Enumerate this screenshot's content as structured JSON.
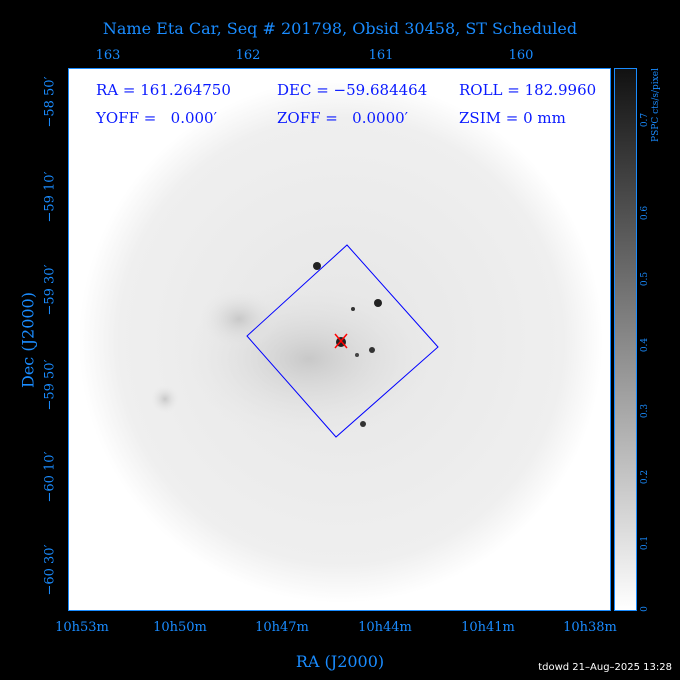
{
  "title": "Name Eta Car, Seq # 201798, Obsid 30458, ST Scheduled",
  "top_axis": [
    "163",
    "162",
    "161",
    "160"
  ],
  "bottom_axis": [
    "10h53m",
    "10h50m",
    "10h47m",
    "10h44m",
    "10h41m",
    "10h38m"
  ],
  "left_axis": [
    "−58 50′",
    "−59 10′",
    "−59 30′",
    "−59 50′",
    "−60 10′",
    "−60 30′"
  ],
  "xlabel": "RA (J2000)",
  "ylabel": "Dec (J2000)",
  "info": {
    "ra": "RA = 161.264750",
    "dec": "DEC = −59.684464",
    "roll": "ROLL = 182.9960",
    "yoff": "YOFF =   0.000′",
    "zoff": "ZOFF =   0.0000′",
    "zsim": "ZSIM = 0 mm"
  },
  "colorbar": {
    "label": "PSPC cts/s/pixel",
    "ticks": [
      "0",
      "0.1",
      "0.2",
      "0.3",
      "0.4",
      "0.5",
      "0.6",
      "0.7"
    ],
    "range": [
      0,
      0.78
    ]
  },
  "footer": "tdowd 21–Aug–2025 13:28",
  "colors": {
    "axis": "#1a8cff",
    "info_text": "#0a1aff",
    "field_box": "#0000ff",
    "target_marker": "#ff0000"
  }
}
